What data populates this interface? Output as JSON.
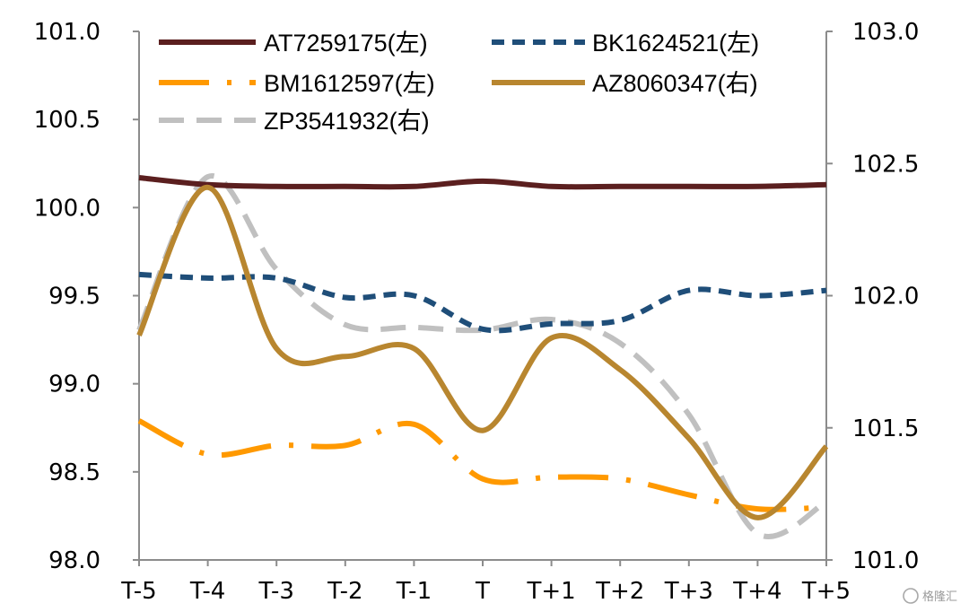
{
  "chart_data": {
    "type": "line",
    "categories": [
      "T-5",
      "T-4",
      "T-3",
      "T-2",
      "T-1",
      "T",
      "T+1",
      "T+2",
      "T+3",
      "T+4",
      "T+5"
    ],
    "y_left": {
      "min": 98.0,
      "max": 101.0,
      "ticks": [
        "98.0",
        "98.5",
        "99.0",
        "99.5",
        "100.0",
        "100.5",
        "101.0"
      ]
    },
    "y_right": {
      "min": 101.0,
      "max": 103.0,
      "ticks": [
        "101.0",
        "101.5",
        "102.0",
        "102.5",
        "103.0"
      ]
    },
    "series": [
      {
        "name": "AT7259175(左)",
        "axis": "left",
        "color": "#5b1f1f",
        "style": "solid",
        "values": [
          100.17,
          100.13,
          100.12,
          100.12,
          100.12,
          100.15,
          100.12,
          100.12,
          100.12,
          100.12,
          100.13
        ]
      },
      {
        "name": "BK1624521(左)",
        "axis": "left",
        "color": "#1f4e79",
        "style": "dash",
        "values": [
          99.62,
          99.6,
          99.6,
          99.49,
          99.5,
          99.31,
          99.34,
          99.36,
          99.53,
          99.5,
          99.53
        ]
      },
      {
        "name": "BM1612597(左)",
        "axis": "left",
        "color": "#ff9900",
        "style": "dashdot",
        "values": [
          98.79,
          98.6,
          98.65,
          98.65,
          98.77,
          98.46,
          98.47,
          98.46,
          98.37,
          98.29,
          98.3
        ]
      },
      {
        "name": "AZ8060347(右)",
        "axis": "right",
        "color": "#b8862f",
        "style": "solid",
        "values": [
          101.85,
          102.41,
          101.8,
          101.77,
          101.8,
          101.49,
          101.84,
          101.72,
          101.46,
          101.16,
          101.43
        ]
      },
      {
        "name": "ZP3541932(右)",
        "axis": "right",
        "color": "#c0c0c0",
        "style": "longdash",
        "values": [
          101.87,
          102.45,
          102.1,
          101.89,
          101.88,
          101.87,
          101.91,
          101.82,
          101.55,
          101.1,
          101.22
        ]
      }
    ]
  },
  "watermark": "格隆汇"
}
